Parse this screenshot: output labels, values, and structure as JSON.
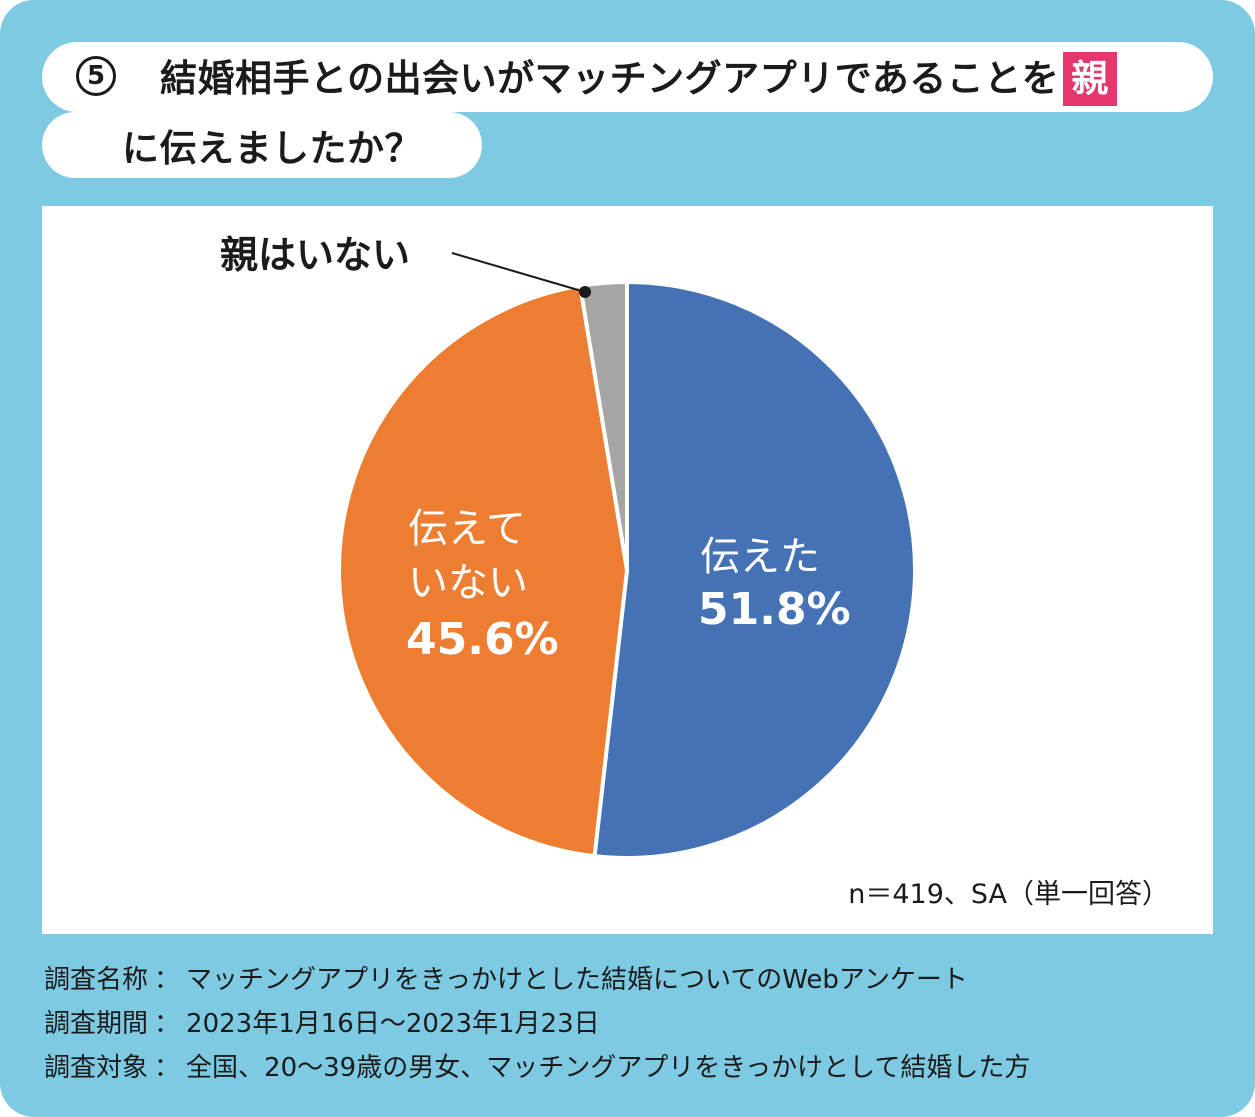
{
  "title": {
    "number": "5",
    "line1": "結婚相手との出会いがマッチングアプリであることを",
    "highlight": "親",
    "line2": "に伝えましたか？"
  },
  "colors": {
    "background": "#7ecae2",
    "highlight": "#e5376c",
    "told": "#4472b4",
    "not_told": "#ed7d31",
    "no_parents": "#a5a5a5"
  },
  "chart_data": {
    "type": "pie",
    "title": "結婚相手との出会いがマッチングアプリであることを親に伝えましたか？",
    "slices": [
      {
        "label": "伝えた",
        "value": 51.8,
        "value_label": "51.8%",
        "color": "#4472b4"
      },
      {
        "label": "伝えていない",
        "label_lines": [
          "伝えて",
          "いない"
        ],
        "value": 45.6,
        "value_label": "45.6%",
        "color": "#ed7d31"
      },
      {
        "label": "親はいない",
        "value": 2.6,
        "value_label": "",
        "color": "#a5a5a5"
      }
    ],
    "start": "12 o'clock",
    "direction": "clockwise",
    "legend": "none"
  },
  "sample_note": "n＝419、SA（単一回答）",
  "survey": [
    {
      "key": "調査名称",
      "sep": "：",
      "value": "マッチングアプリをきっかけとした結婚についてのWebアンケート"
    },
    {
      "key": "調査期間",
      "sep": "：",
      "value": "2023年1月16日～2023年1月23日"
    },
    {
      "key": "調査対象",
      "sep": "：",
      "value": "全国、20～39歳の男女、マッチングアプリをきっかけとして結婚した方"
    }
  ]
}
